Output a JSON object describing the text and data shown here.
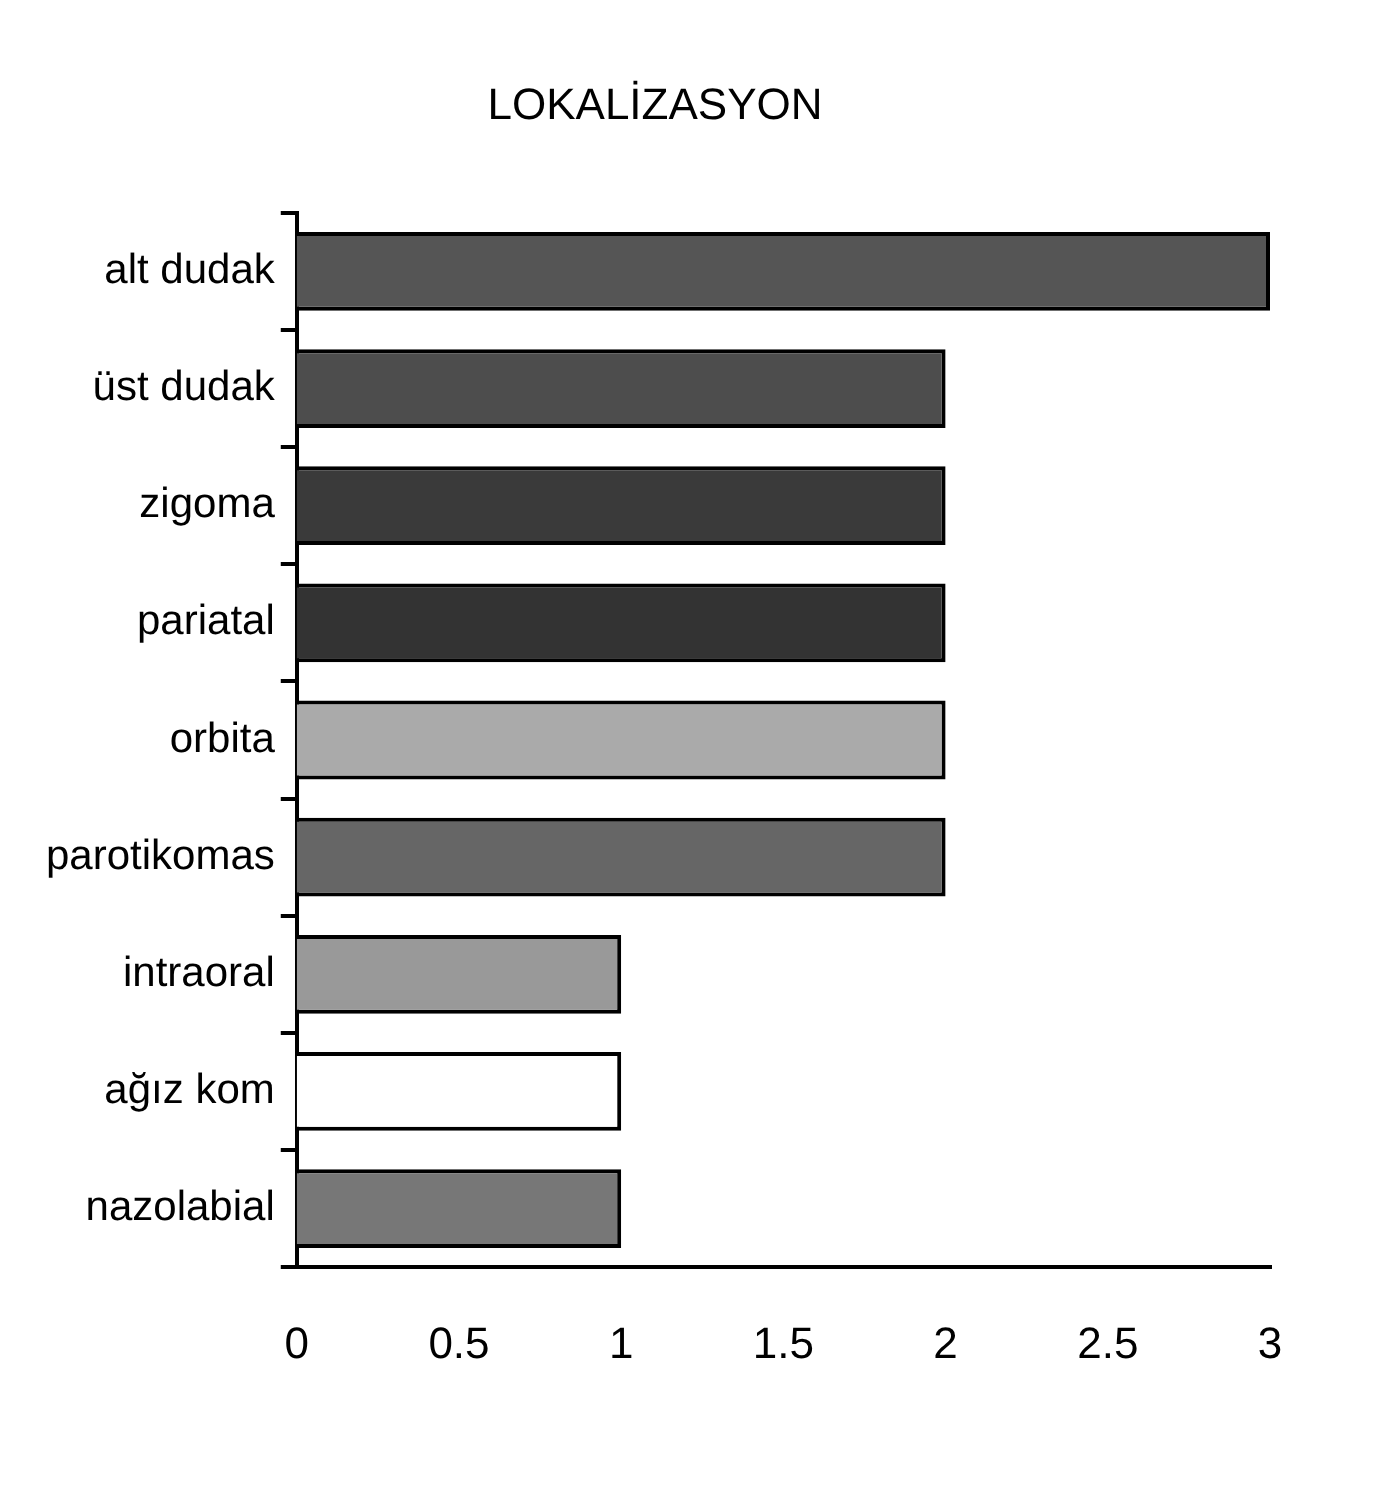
{
  "chart_data": {
    "type": "bar",
    "orientation": "horizontal",
    "title": "LOKALİZASYON",
    "categories": [
      "alt dudak",
      "üst dudak",
      "zigoma",
      "pariatal",
      "orbita",
      "parotikomas",
      "intraoral",
      "ağız kom",
      "nazolabial"
    ],
    "values": [
      3,
      2,
      2,
      2,
      2,
      2,
      1,
      1,
      1
    ],
    "colors": [
      "#555555",
      "#4d4d4d",
      "#3a3a3a",
      "#333333",
      "#aaaaaa",
      "#666666",
      "#999999",
      "#ffffff",
      "#777777"
    ],
    "xlim": [
      0,
      3
    ],
    "xticks": [
      0,
      0.5,
      1,
      1.5,
      2,
      2.5,
      3
    ],
    "grid": false,
    "legend": false
  }
}
